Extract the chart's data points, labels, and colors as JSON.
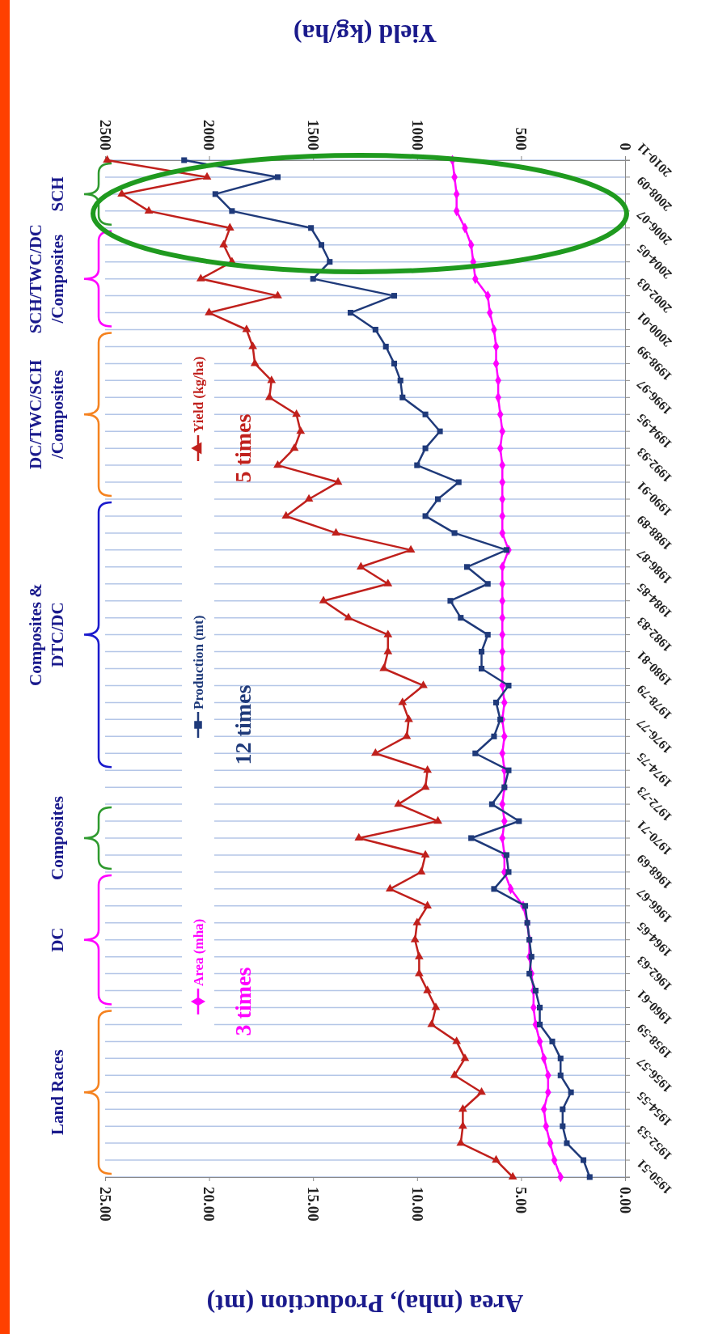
{
  "chart_data": {
    "type": "line",
    "orientation": "horizontal",
    "xlabel": "Area (mha), Production (mt)",
    "x2label": "Yield (kg/ha)",
    "categories": [
      "2010-11",
      null,
      "2008-09",
      null,
      "2006-07",
      null,
      "2004-05",
      null,
      "2002-03",
      null,
      "2000-01",
      null,
      "1998-99",
      null,
      "1996-97",
      null,
      "1994-95",
      null,
      "1992-93",
      null,
      "1990-91",
      null,
      "1988-89",
      null,
      "1986-87",
      null,
      "1984-85",
      null,
      "1982-83",
      null,
      "1980-81",
      null,
      "1978-79",
      null,
      "1976-77",
      null,
      "1974-75",
      null,
      "1972-73",
      null,
      "1970-71",
      null,
      "1968-69",
      null,
      "1966-67",
      null,
      "1964-65",
      null,
      "1962-63",
      null,
      "1960-61",
      null,
      "1958-59",
      null,
      "1956-57",
      null,
      "1954-55",
      null,
      "1952-53",
      null,
      "1950-51"
    ],
    "series": [
      {
        "name": "Area (mha)",
        "color": "#ff00ff",
        "marker": "diamond",
        "values": [
          8.3,
          8.2,
          8.1,
          8.1,
          7.7,
          7.4,
          7.3,
          7.2,
          6.6,
          6.5,
          6.3,
          6.2,
          6.2,
          6.1,
          6.1,
          6.0,
          5.9,
          6.0,
          5.9,
          5.9,
          5.9,
          5.9,
          5.9,
          5.6,
          5.9,
          5.9,
          5.9,
          5.9,
          5.9,
          5.9,
          5.9,
          5.9,
          5.8,
          5.9,
          5.8,
          5.9,
          5.8,
          5.8,
          5.9,
          5.8,
          5.9,
          5.8,
          5.8,
          5.5,
          4.9,
          4.7,
          4.6,
          4.6,
          4.5,
          4.4,
          4.4,
          4.3,
          4.1,
          3.9,
          3.7,
          3.7,
          3.9,
          3.8,
          3.6,
          3.4,
          3.1
        ]
      },
      {
        "name": "Production (mt)",
        "color": "#1f3a7a",
        "marker": "square",
        "values": [
          21.2,
          16.7,
          19.7,
          18.9,
          15.1,
          14.6,
          14.2,
          15.0,
          11.1,
          13.2,
          12.0,
          11.5,
          11.1,
          10.8,
          10.7,
          9.6,
          8.9,
          9.6,
          10.0,
          8.0,
          9.0,
          9.6,
          8.2,
          5.7,
          7.6,
          6.6,
          8.4,
          7.9,
          6.6,
          6.9,
          6.9,
          5.6,
          6.2,
          6.0,
          6.3,
          7.2,
          5.6,
          5.8,
          6.4,
          5.1,
          7.4,
          5.7,
          5.6,
          6.3,
          4.8,
          4.7,
          4.6,
          4.5,
          4.6,
          4.3,
          4.1,
          4.1,
          3.5,
          3.1,
          3.1,
          2.6,
          3.0,
          3.0,
          2.8,
          2.0,
          1.7
        ]
      },
      {
        "name": "Yield (kg/ha)",
        "color": "#c0201c",
        "marker": "triangle",
        "axis": "x2",
        "values": [
          2490,
          2010,
          2420,
          2290,
          1900,
          1930,
          1890,
          2040,
          1670,
          2000,
          1820,
          1790,
          1780,
          1700,
          1710,
          1580,
          1560,
          1590,
          1670,
          1380,
          1520,
          1630,
          1390,
          1030,
          1270,
          1140,
          1450,
          1330,
          1140,
          1140,
          1160,
          970,
          1070,
          1040,
          1050,
          1200,
          950,
          960,
          1090,
          900,
          1280,
          960,
          980,
          1130,
          950,
          1000,
          1010,
          990,
          990,
          950,
          910,
          930,
          810,
          770,
          820,
          690,
          780,
          780,
          790,
          620,
          540
        ]
      }
    ],
    "xlim": [
      25,
      0
    ],
    "xticks": [
      {
        "value": 25,
        "label": "25.00"
      },
      {
        "value": 20,
        "label": "20.00"
      },
      {
        "value": 15,
        "label": "15.00"
      },
      {
        "value": 10,
        "label": "10.00"
      },
      {
        "value": 5,
        "label": "5.00"
      },
      {
        "value": 0,
        "label": "0.00"
      }
    ],
    "x2lim": [
      2500,
      0
    ],
    "x2ticks": [
      2500,
      2000,
      1500,
      1000,
      500,
      0
    ],
    "grid": "y",
    "legend": "left",
    "line_style": "solid",
    "annotations": [
      "SCH",
      "SCH/TWC/DC\n/Composites",
      "DC/TWC/SCH\n/Composites",
      "Composites &\nDTC/DC",
      "Composites",
      "DC",
      "Land Races",
      "3 times",
      "12 times",
      "5 times"
    ]
  }
}
